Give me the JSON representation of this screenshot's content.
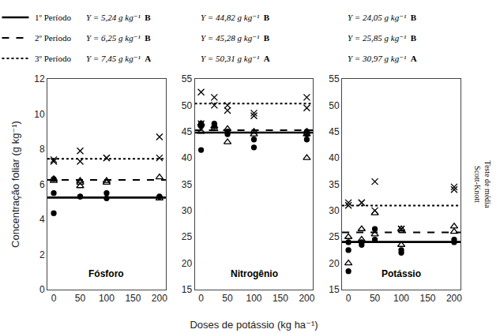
{
  "chart_data": [
    {
      "type": "scatter",
      "title": "Fósforo",
      "ylabel": "Concentração foliar (g kg⁻¹)",
      "xlim": [
        -12,
        212
      ],
      "xticks": [
        0,
        50,
        100,
        150,
        200
      ],
      "ylim": [
        0,
        12
      ],
      "yticks": [
        0,
        2,
        4,
        6,
        8,
        10,
        12
      ],
      "grid": false,
      "series": [
        {
          "name": "1º Período",
          "color": "black",
          "marker": "circle",
          "line_style": "solid",
          "mean": 5.24,
          "x": [
            0,
            0,
            0,
            50,
            50,
            100,
            100,
            200,
            200
          ],
          "values": [
            4.35,
            5.5,
            6.3,
            5.3,
            5.3,
            5.2,
            5.5,
            5.3,
            5.3
          ]
        },
        {
          "name": "2º Período",
          "color": "black",
          "marker": "triangle-up-open",
          "line_style": "dashed",
          "mean": 6.25,
          "x": [
            0,
            0,
            50,
            50,
            50,
            100,
            100,
            200,
            200
          ],
          "values": [
            6.3,
            6.2,
            6.1,
            6.2,
            5.9,
            6.1,
            6.2,
            6.4,
            5.2
          ]
        },
        {
          "name": "3º Período",
          "color": "black",
          "marker": "x",
          "line_style": "dotted",
          "mean": 7.45,
          "x": [
            0,
            0,
            50,
            50,
            100,
            100,
            200,
            200
          ],
          "values": [
            7.3,
            7.4,
            7.9,
            7.3,
            7.5,
            7.5,
            8.7,
            7.5
          ]
        }
      ],
      "annotations": [
        "Y = 5,24 g kg⁻¹ B",
        "Y = 6,25 g kg⁻¹ B",
        "Y = 7,45 g kg⁻¹ A"
      ]
    },
    {
      "type": "scatter",
      "title": "Nitrogênio",
      "xlabel": "Doses de potássio (kg ha⁻¹)",
      "xlim": [
        -12,
        212
      ],
      "xticks": [
        0,
        50,
        100,
        150,
        200
      ],
      "ylim": [
        15,
        55
      ],
      "yticks": [
        15,
        20,
        25,
        30,
        35,
        40,
        45,
        50,
        55
      ],
      "grid": false,
      "series": [
        {
          "color": "black",
          "marker": "circle",
          "line_style": "solid",
          "mean": 44.82,
          "x": [
            0,
            0,
            0,
            25,
            25,
            50,
            50,
            100,
            100,
            200,
            200,
            200
          ],
          "values": [
            41.5,
            46.5,
            46.0,
            46.5,
            46.0,
            44.5,
            45.0,
            42.0,
            43.5,
            44.5,
            45.0,
            43.5
          ]
        },
        {
          "color": "black",
          "marker": "triangle-up-open",
          "line_style": "dashed",
          "mean": 45.28,
          "x": [
            0,
            0,
            25,
            25,
            50,
            50,
            100,
            100,
            200,
            200,
            200
          ],
          "values": [
            46.5,
            45.0,
            46.0,
            45.5,
            43.0,
            45.5,
            45.0,
            44.5,
            45.0,
            44.5,
            40.0
          ]
        },
        {
          "color": "black",
          "marker": "x",
          "line_style": "dotted",
          "mean": 50.31,
          "x": [
            0,
            0,
            25,
            25,
            50,
            50,
            100,
            100,
            200,
            200
          ],
          "values": [
            46.5,
            52.5,
            51.5,
            50.0,
            49.0,
            50.0,
            48.5,
            48.0,
            49.5,
            51.5
          ]
        }
      ],
      "annotations": [
        "Y = 44,82 g kg⁻¹   B",
        "Y = 45,28 g kg⁻¹   B",
        "Y = 50,31 g kg⁻¹   A"
      ]
    },
    {
      "type": "scatter",
      "title": "Potássio",
      "xlim": [
        -12,
        212
      ],
      "xticks": [
        0,
        50,
        100,
        150,
        200
      ],
      "ylim": [
        15,
        55
      ],
      "yticks": [
        15,
        20,
        25,
        30,
        35,
        40,
        45,
        50,
        55
      ],
      "grid": false,
      "series": [
        {
          "color": "black",
          "marker": "circle",
          "line_style": "solid",
          "mean": 24.05,
          "x": [
            0,
            0,
            0,
            25,
            25,
            50,
            50,
            100,
            100,
            200,
            200
          ],
          "values": [
            18.5,
            24.0,
            22.5,
            24.0,
            23.5,
            24.5,
            26.5,
            22.0,
            22.5,
            24.5,
            24.0
          ]
        },
        {
          "color": "black",
          "marker": "triangle-up-open",
          "line_style": "dashed",
          "mean": 25.85,
          "x": [
            0,
            0,
            25,
            25,
            50,
            50,
            100,
            100,
            200,
            200
          ],
          "values": [
            25.0,
            20.0,
            26.5,
            24.5,
            25.5,
            29.5,
            26.5,
            23.5,
            26.0,
            27.0
          ]
        },
        {
          "color": "black",
          "marker": "x",
          "line_style": "dotted",
          "mean": 30.97,
          "x": [
            0,
            0,
            25,
            25,
            50,
            50,
            100,
            100,
            200,
            200
          ],
          "values": [
            31.5,
            31.0,
            31.5,
            31.5,
            35.5,
            30.0,
            26.5,
            26.5,
            34.5,
            34.0
          ]
        }
      ],
      "annotations": [
        "Y = 24,05 g kg⁻¹ B",
        "Y = 25,85 g kg⁻¹ B",
        "Y = 30,97 g kg⁻¹ A",
        "Teste de média\nScott-Knott"
      ]
    }
  ]
}
